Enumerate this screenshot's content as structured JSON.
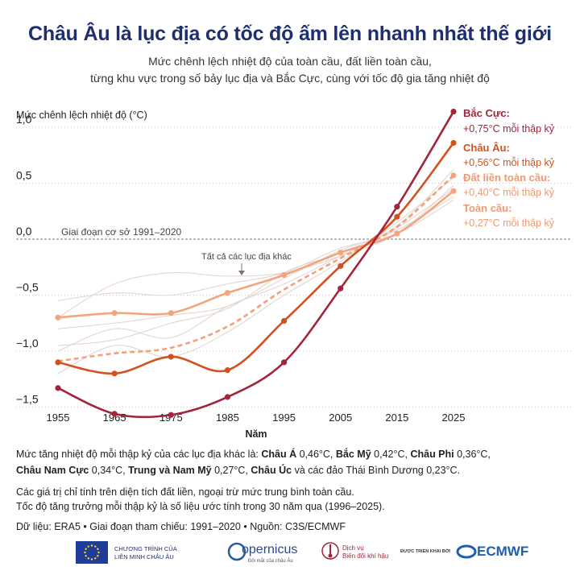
{
  "title": "Châu Âu là lục địa có tốc độ ấm lên nhanh nhất thế giới",
  "subtitle_line1": "Mức chênh lệch nhiệt độ của toàn cầu, đất liền toàn cầu,",
  "subtitle_line2": "từng khu vực trong số bảy lục địa và Bắc Cực, cùng với tốc độ gia tăng nhiệt độ",
  "chart_data": {
    "type": "line",
    "ylabel": "Mức chênh lệch nhiệt độ (°C)",
    "xlabel": "Năm",
    "xlim": [
      1955,
      2025
    ],
    "ylim": [
      -1.65,
      1.2
    ],
    "x_ticks": [
      "1955",
      "1965",
      "1975",
      "1985",
      "1995",
      "2005",
      "2015",
      "2025"
    ],
    "y_ticks": [
      {
        "value": 1.0,
        "label": "1,0"
      },
      {
        "value": 0.5,
        "label": "0,5"
      },
      {
        "value": 0.0,
        "label": "0,0"
      },
      {
        "value": -0.5,
        "label": "−0,5"
      },
      {
        "value": -1.0,
        "label": "−1,0"
      },
      {
        "value": -1.5,
        "label": "−1,5"
      }
    ],
    "baseline_label": "Giai đoạn cơ sở 1991–2020",
    "others_label": "Tất cả các lục địa khác",
    "x": [
      1955,
      1965,
      1975,
      1985,
      1995,
      2005,
      2015,
      2025
    ],
    "series": [
      {
        "name": "Bắc Cực:",
        "rate": "+0,75°C mỗi thập kỷ",
        "color": "#a3243b",
        "values": [
          -1.33,
          -1.56,
          -1.57,
          -1.41,
          -1.1,
          -0.44,
          0.29,
          1.14
        ]
      },
      {
        "name": "Châu Âu:",
        "rate": "+0,56°C mỗi thập kỷ",
        "color": "#d2511f",
        "values": [
          -1.1,
          -1.2,
          -1.05,
          -1.17,
          -0.73,
          -0.24,
          0.2,
          0.86
        ]
      },
      {
        "name": "Đất liền toàn cầu:",
        "rate": "+0,40°C mỗi thập kỷ",
        "color": "#f2a07c",
        "values": [
          -1.09,
          -1.02,
          -0.97,
          -0.78,
          -0.45,
          -0.17,
          0.11,
          0.57
        ],
        "dashed": true
      },
      {
        "name": "Toàn cầu:",
        "rate": "+0,27°C mỗi thập kỷ",
        "color": "#f2a57e",
        "values": [
          -0.7,
          -0.66,
          -0.66,
          -0.48,
          -0.32,
          -0.12,
          0.05,
          0.43
        ]
      }
    ],
    "others": [
      [
        -0.7,
        -0.4,
        -0.3,
        -0.33,
        -0.3,
        -0.15,
        0.05,
        0.48
      ],
      [
        -0.95,
        -0.9,
        -0.75,
        -0.62,
        -0.3,
        -0.12,
        0.12,
        0.62
      ],
      [
        -1.2,
        -0.95,
        -1.05,
        -0.83,
        -0.5,
        -0.2,
        0.15,
        0.55
      ],
      [
        -1.0,
        -0.8,
        -0.88,
        -0.6,
        -0.4,
        -0.15,
        0.1,
        0.45
      ],
      [
        -0.8,
        -0.75,
        -0.68,
        -0.6,
        -0.35,
        -0.1,
        0.08,
        0.38
      ],
      [
        -0.55,
        -0.48,
        -0.5,
        -0.4,
        -0.3,
        -0.08,
        0.05,
        0.35
      ]
    ]
  },
  "footer": {
    "rates_intro": "Mức tăng nhiệt độ mỗi thập kỷ của các lục địa khác là: ",
    "rates": [
      {
        "name": "Châu Á",
        "value": " 0,46°C, "
      },
      {
        "name": "Bắc Mỹ",
        "value": " 0,42°C, "
      },
      {
        "name": "Châu Phi",
        "value": " 0,36°C,"
      },
      {
        "name": "Châu Nam Cực",
        "value": " 0,34°C, "
      },
      {
        "name": "Trung và Nam Mỹ",
        "value": " 0,27°C, "
      },
      {
        "name": "Châu Úc",
        "value": " và các đảo Thái Bình Dương 0,23°C."
      }
    ],
    "note1": "Các giá trị chỉ tính trên diện tích đất liền, ngoại trừ mức trung bình toàn cầu.",
    "note2": "Tốc độ tăng trưởng mỗi thập kỷ là số liệu ước tính trong 30 năm qua (1996–2025).",
    "source": "Dữ liệu: ERA5 • Giai đoạn tham chiếu: 1991–2020 • Nguồn: C3S/ECMWF"
  },
  "logos": {
    "eu_line1": "CHƯƠNG TRÌNH CỦA",
    "eu_line2": "LIÊN MINH CHÂU ÂU",
    "copernicus": "opernicus",
    "copernicus_sub": "Đôi mắt của châu Âu",
    "climate_line1": "Dịch vụ",
    "climate_line2": "Biến đổi khí hậu",
    "implemented_by": "ĐƯỢC TRIỂN KHAI BỞI",
    "ecmwf": "ECMWF"
  }
}
